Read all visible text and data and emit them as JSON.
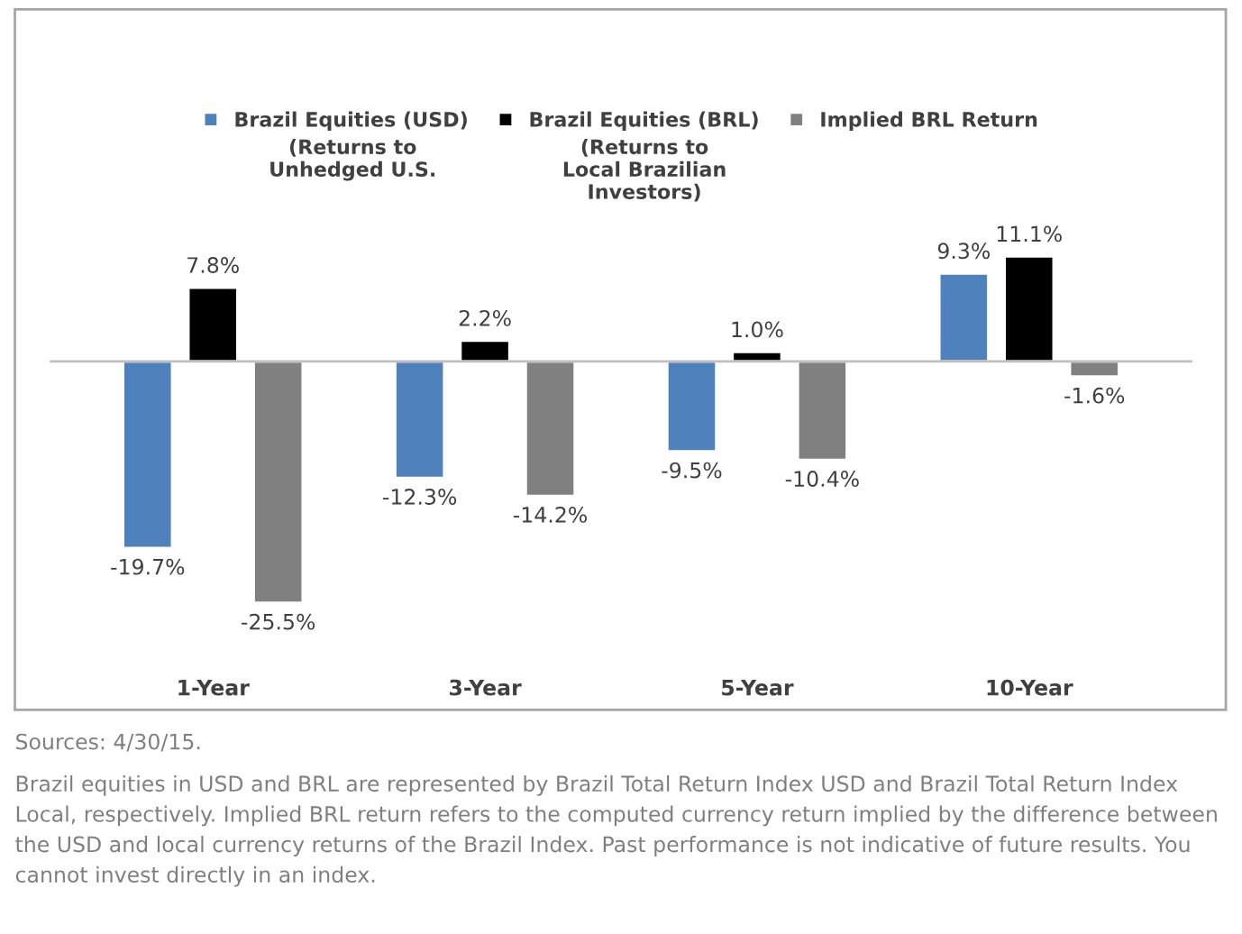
{
  "chart_data": {
    "type": "bar",
    "categories": [
      "1-Year",
      "3-Year",
      "5-Year",
      "10-Year"
    ],
    "series": [
      {
        "name": "Brazil Equities (USD)",
        "color": "#4f81bd",
        "values": [
          -19.7,
          -12.3,
          -9.5,
          9.3
        ],
        "value_labels": [
          "-19.7%",
          "-12.3%",
          "-9.5%",
          "9.3%"
        ]
      },
      {
        "name": "Brazil Equities (BRL)",
        "color": "#000000",
        "values": [
          7.8,
          2.2,
          1.0,
          11.1
        ],
        "value_labels": [
          "7.8%",
          "2.2%",
          "1.0%",
          "11.1%"
        ]
      },
      {
        "name": "Implied BRL Return",
        "color": "#808080",
        "values": [
          -25.5,
          -14.2,
          -10.4,
          -1.6
        ],
        "value_labels": [
          "-25.5%",
          "-14.2%",
          "-10.4%",
          "-1.6%"
        ]
      }
    ],
    "annotations": [
      "(Returns to\nUnhedged U.S.",
      "(Returns to\nLocal Brazilian\nInvestors)",
      "Sources: 4/30/15.",
      "Brazil equities in USD and BRL are represented by Brazil Total Return Index USD and Brazil Total Return Index Local, respectively. Implied BRL return refers to the computed currency return implied by the difference between the USD and local currency returns of the Brazil Index. Past performance is not indicative of future results. You cannot invest directly in an index."
    ],
    "legend": "top",
    "tick_labels": "x"
  }
}
